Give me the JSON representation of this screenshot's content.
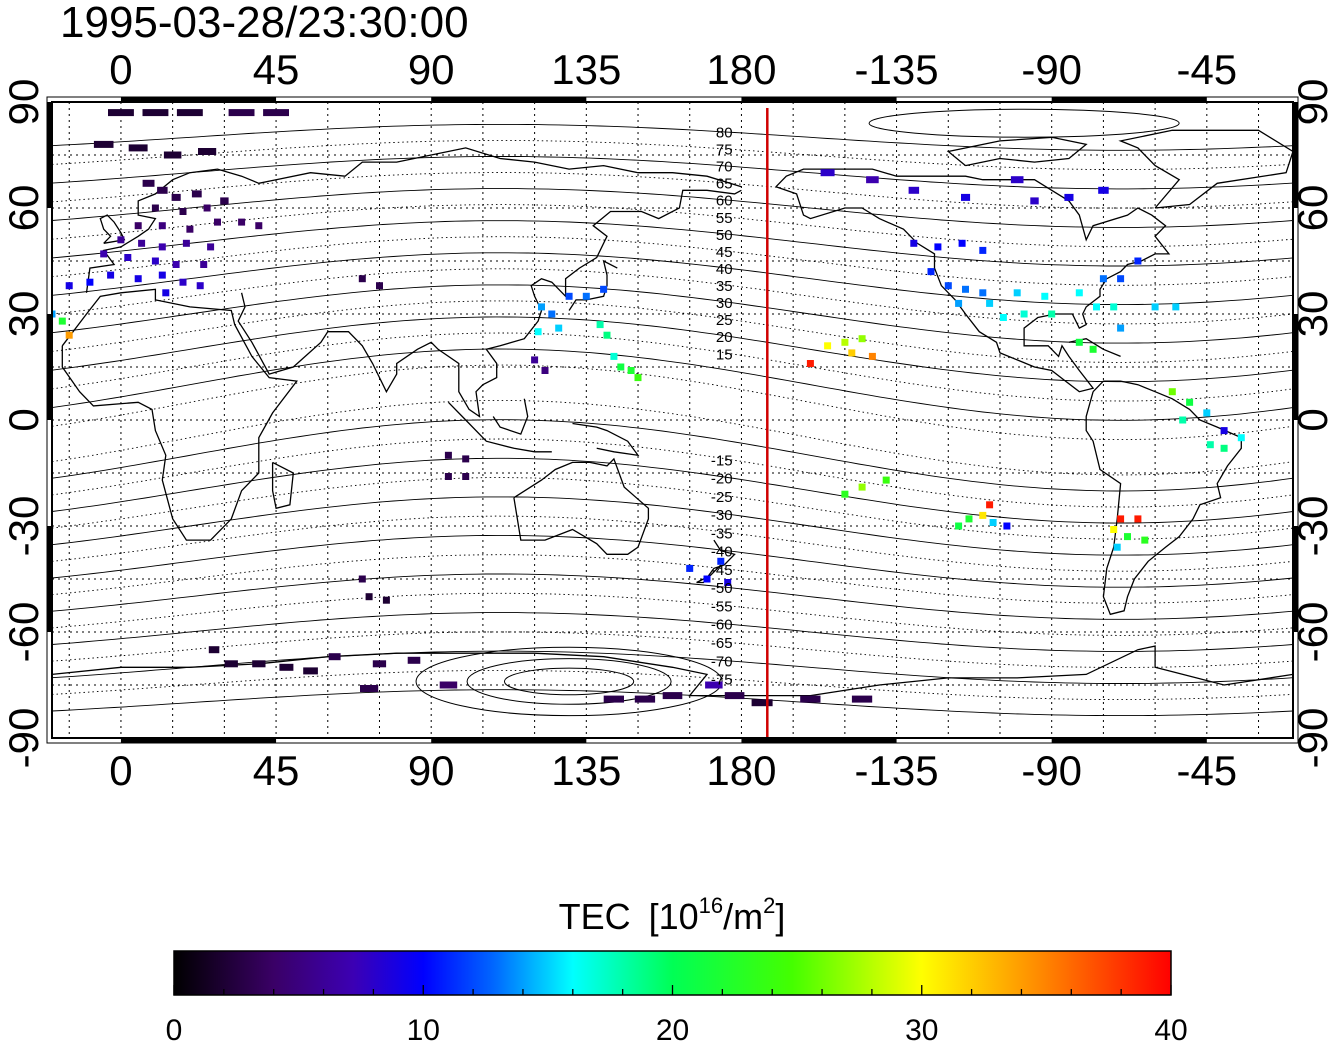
{
  "timestamp": "1995-03-28/23:30:00",
  "x_axis": {
    "longitudes": [
      0,
      45,
      90,
      135,
      180,
      -135,
      -90,
      -45
    ],
    "labels": [
      "0",
      "45",
      "90",
      "135",
      "180",
      "-135",
      "-90",
      "-45"
    ],
    "range": [
      -20,
      340
    ]
  },
  "y_axis": {
    "latitudes": [
      90,
      60,
      30,
      0,
      -30,
      -60,
      -90
    ],
    "labels": [
      "90",
      "60",
      "30",
      "0",
      "-30",
      "-60",
      "-90"
    ],
    "range": [
      -90,
      90
    ]
  },
  "terminator_longitude": 187.5,
  "magnetic_latitude_labels": [
    "80",
    "75",
    "70",
    "65",
    "60",
    "55",
    "50",
    "45",
    "40",
    "35",
    "30",
    "25",
    "20",
    "15",
    "-15",
    "-20",
    "-25",
    "-30",
    "-35",
    "-40",
    "-45",
    "-50",
    "-55",
    "-60",
    "-65",
    "-70",
    "-75"
  ],
  "colorbar": {
    "title": "TEC",
    "unit_prefix": "[10",
    "unit_exp": "16",
    "unit_mid": "/m",
    "unit_exp2": "2",
    "unit_suffix": "]",
    "ticks": [
      "0",
      "10",
      "20",
      "30",
      "40"
    ],
    "range": [
      0,
      40
    ]
  },
  "chart_data": {
    "type": "scatter",
    "title": "1995-03-28/23:30:00",
    "xlabel": "",
    "ylabel": "",
    "xlim": [
      -20,
      340
    ],
    "ylim": [
      -90,
      90
    ],
    "colorbar_label": "TEC [10^16/m^2]",
    "points": [
      {
        "lon": 0,
        "lat": 87,
        "tec": 2
      },
      {
        "lon": 10,
        "lat": 87,
        "tec": 2
      },
      {
        "lon": 20,
        "lat": 87,
        "tec": 2
      },
      {
        "lon": 35,
        "lat": 87,
        "tec": 3
      },
      {
        "lon": 45,
        "lat": 87,
        "tec": 3
      },
      {
        "lon": -5,
        "lat": 78,
        "tec": 2
      },
      {
        "lon": 5,
        "lat": 77,
        "tec": 2
      },
      {
        "lon": 15,
        "lat": 75,
        "tec": 2
      },
      {
        "lon": 25,
        "lat": 76,
        "tec": 2
      },
      {
        "lon": 8,
        "lat": 67,
        "tec": 3
      },
      {
        "lon": 12,
        "lat": 65,
        "tec": 3
      },
      {
        "lon": 16,
        "lat": 63,
        "tec": 3
      },
      {
        "lon": 22,
        "lat": 64,
        "tec": 3
      },
      {
        "lon": 10,
        "lat": 60,
        "tec": 3
      },
      {
        "lon": 18,
        "lat": 59,
        "tec": 3
      },
      {
        "lon": 25,
        "lat": 60,
        "tec": 4
      },
      {
        "lon": 30,
        "lat": 62,
        "tec": 3
      },
      {
        "lon": 5,
        "lat": 55,
        "tec": 4
      },
      {
        "lon": 12,
        "lat": 55,
        "tec": 5
      },
      {
        "lon": 20,
        "lat": 54,
        "tec": 4
      },
      {
        "lon": 28,
        "lat": 56,
        "tec": 4
      },
      {
        "lon": 35,
        "lat": 56,
        "tec": 4
      },
      {
        "lon": 40,
        "lat": 55,
        "tec": 4
      },
      {
        "lon": 0,
        "lat": 51,
        "tec": 6
      },
      {
        "lon": 6,
        "lat": 50,
        "tec": 6
      },
      {
        "lon": 12,
        "lat": 49,
        "tec": 7
      },
      {
        "lon": 19,
        "lat": 50,
        "tec": 6
      },
      {
        "lon": 26,
        "lat": 49,
        "tec": 6
      },
      {
        "lon": -5,
        "lat": 47,
        "tec": 7
      },
      {
        "lon": 2,
        "lat": 46,
        "tec": 8
      },
      {
        "lon": 10,
        "lat": 45,
        "tec": 8
      },
      {
        "lon": 16,
        "lat": 44,
        "tec": 7
      },
      {
        "lon": 24,
        "lat": 44,
        "tec": 6
      },
      {
        "lon": -3,
        "lat": 41,
        "tec": 9
      },
      {
        "lon": 5,
        "lat": 40,
        "tec": 9
      },
      {
        "lon": 12,
        "lat": 41,
        "tec": 9
      },
      {
        "lon": 18,
        "lat": 39,
        "tec": 8
      },
      {
        "lon": 23,
        "lat": 38,
        "tec": 8
      },
      {
        "lon": 13,
        "lat": 36,
        "tec": 9
      },
      {
        "lon": -9,
        "lat": 39,
        "tec": 10
      },
      {
        "lon": -15,
        "lat": 38,
        "tec": 9
      },
      {
        "lon": -20,
        "lat": 30,
        "tec": 14
      },
      {
        "lon": -17,
        "lat": 28,
        "tec": 22
      },
      {
        "lon": -15,
        "lat": 24,
        "tec": 34
      },
      {
        "lon": 70,
        "lat": 40,
        "tec": 3
      },
      {
        "lon": 75,
        "lat": 38,
        "tec": 3
      },
      {
        "lon": 122,
        "lat": 32,
        "tec": 14
      },
      {
        "lon": 125,
        "lat": 30,
        "tec": 13
      },
      {
        "lon": 121,
        "lat": 25,
        "tec": 16
      },
      {
        "lon": 127,
        "lat": 26,
        "tec": 15
      },
      {
        "lon": 120,
        "lat": 17,
        "tec": 6
      },
      {
        "lon": 123,
        "lat": 14,
        "tec": 5
      },
      {
        "lon": 130,
        "lat": 35,
        "tec": 12
      },
      {
        "lon": 135,
        "lat": 35,
        "tec": 13
      },
      {
        "lon": 140,
        "lat": 37,
        "tec": 12
      },
      {
        "lon": 139,
        "lat": 27,
        "tec": 18
      },
      {
        "lon": 141,
        "lat": 24,
        "tec": 19
      },
      {
        "lon": 143,
        "lat": 18,
        "tec": 17
      },
      {
        "lon": 145,
        "lat": 15,
        "tec": 21
      },
      {
        "lon": 148,
        "lat": 14,
        "tec": 22
      },
      {
        "lon": 150,
        "lat": 12,
        "tec": 24
      },
      {
        "lon": 95,
        "lat": -10,
        "tec": 3
      },
      {
        "lon": 100,
        "lat": -11,
        "tec": 3
      },
      {
        "lon": 95,
        "lat": -16,
        "tec": 3
      },
      {
        "lon": 100,
        "lat": -16,
        "tec": 3
      },
      {
        "lon": 70,
        "lat": -45,
        "tec": 3
      },
      {
        "lon": 72,
        "lat": -50,
        "tec": 2
      },
      {
        "lon": 77,
        "lat": -51,
        "tec": 2
      },
      {
        "lon": 165,
        "lat": -42,
        "tec": 11
      },
      {
        "lon": 170,
        "lat": -45,
        "tec": 10
      },
      {
        "lon": 174,
        "lat": -40,
        "tec": 11
      },
      {
        "lon": 176,
        "lat": -46,
        "tec": 9
      },
      {
        "lon": 205,
        "lat": 21,
        "tec": 30
      },
      {
        "lon": 210,
        "lat": 22,
        "tec": 28
      },
      {
        "lon": 215,
        "lat": 23,
        "tec": 27
      },
      {
        "lon": 212,
        "lat": 19,
        "tec": 32
      },
      {
        "lon": 218,
        "lat": 18,
        "tec": 35
      },
      {
        "lon": 200,
        "lat": 16,
        "tec": 39
      },
      {
        "lon": 205,
        "lat": 70,
        "tec": 8
      },
      {
        "lon": 218,
        "lat": 68,
        "tec": 7
      },
      {
        "lon": 230,
        "lat": 65,
        "tec": 8
      },
      {
        "lon": 245,
        "lat": 63,
        "tec": 9
      },
      {
        "lon": 260,
        "lat": 68,
        "tec": 8
      },
      {
        "lon": 265,
        "lat": 62,
        "tec": 8
      },
      {
        "lon": 275,
        "lat": 63,
        "tec": 9
      },
      {
        "lon": 285,
        "lat": 65,
        "tec": 9
      },
      {
        "lon": 230,
        "lat": 50,
        "tec": 9
      },
      {
        "lon": 237,
        "lat": 49,
        "tec": 10
      },
      {
        "lon": 244,
        "lat": 50,
        "tec": 10
      },
      {
        "lon": 250,
        "lat": 48,
        "tec": 11
      },
      {
        "lon": 235,
        "lat": 42,
        "tec": 11
      },
      {
        "lon": 240,
        "lat": 38,
        "tec": 12
      },
      {
        "lon": 245,
        "lat": 37,
        "tec": 13
      },
      {
        "lon": 250,
        "lat": 36,
        "tec": 13
      },
      {
        "lon": 243,
        "lat": 33,
        "tec": 14
      },
      {
        "lon": 252,
        "lat": 33,
        "tec": 15
      },
      {
        "lon": 260,
        "lat": 36,
        "tec": 15
      },
      {
        "lon": 268,
        "lat": 35,
        "tec": 16
      },
      {
        "lon": 256,
        "lat": 29,
        "tec": 16
      },
      {
        "lon": 262,
        "lat": 30,
        "tec": 17
      },
      {
        "lon": 270,
        "lat": 30,
        "tec": 18
      },
      {
        "lon": 278,
        "lat": 36,
        "tec": 16
      },
      {
        "lon": 285,
        "lat": 40,
        "tec": 13
      },
      {
        "lon": 290,
        "lat": 40,
        "tec": 12
      },
      {
        "lon": 295,
        "lat": 45,
        "tec": 11
      },
      {
        "lon": 283,
        "lat": 32,
        "tec": 16
      },
      {
        "lon": 288,
        "lat": 32,
        "tec": 17
      },
      {
        "lon": 300,
        "lat": 32,
        "tec": 15
      },
      {
        "lon": 306,
        "lat": 32,
        "tec": 15
      },
      {
        "lon": 278,
        "lat": 22,
        "tec": 21
      },
      {
        "lon": 282,
        "lat": 20,
        "tec": 22
      },
      {
        "lon": 290,
        "lat": 26,
        "tec": 14
      },
      {
        "lon": 305,
        "lat": 8,
        "tec": 26
      },
      {
        "lon": 310,
        "lat": 5,
        "tec": 21
      },
      {
        "lon": 315,
        "lat": 2,
        "tec": 15
      },
      {
        "lon": 308,
        "lat": 0,
        "tec": 18
      },
      {
        "lon": 320,
        "lat": -3,
        "tec": 9
      },
      {
        "lon": 325,
        "lat": -5,
        "tec": 16
      },
      {
        "lon": 316,
        "lat": -7,
        "tec": 18
      },
      {
        "lon": 320,
        "lat": -8,
        "tec": 19
      },
      {
        "lon": 222,
        "lat": -17,
        "tec": 24
      },
      {
        "lon": 215,
        "lat": -19,
        "tec": 27
      },
      {
        "lon": 210,
        "lat": -21,
        "tec": 23
      },
      {
        "lon": 252,
        "lat": -24,
        "tec": 39
      },
      {
        "lon": 250,
        "lat": -27,
        "tec": 31
      },
      {
        "lon": 246,
        "lat": -28,
        "tec": 22
      },
      {
        "lon": 253,
        "lat": -29,
        "tec": 15
      },
      {
        "lon": 257,
        "lat": -30,
        "tec": 10
      },
      {
        "lon": 243,
        "lat": -30,
        "tec": 21
      },
      {
        "lon": 290,
        "lat": -28,
        "tec": 39
      },
      {
        "lon": 295,
        "lat": -28,
        "tec": 39
      },
      {
        "lon": 288,
        "lat": -31,
        "tec": 30
      },
      {
        "lon": 292,
        "lat": -33,
        "tec": 22
      },
      {
        "lon": 297,
        "lat": -34,
        "tec": 23
      },
      {
        "lon": 289,
        "lat": -36,
        "tec": 15
      },
      {
        "lon": 27,
        "lat": -65,
        "tec": 2
      },
      {
        "lon": 32,
        "lat": -69,
        "tec": 2
      },
      {
        "lon": 40,
        "lat": -69,
        "tec": 2
      },
      {
        "lon": 48,
        "lat": -70,
        "tec": 2
      },
      {
        "lon": 55,
        "lat": -71,
        "tec": 2
      },
      {
        "lon": 62,
        "lat": -67,
        "tec": 3
      },
      {
        "lon": 75,
        "lat": -69,
        "tec": 3
      },
      {
        "lon": 85,
        "lat": -68,
        "tec": 3
      },
      {
        "lon": 72,
        "lat": -76,
        "tec": 3
      },
      {
        "lon": 95,
        "lat": -75,
        "tec": 4
      },
      {
        "lon": 143,
        "lat": -79,
        "tec": 3
      },
      {
        "lon": 152,
        "lat": -79,
        "tec": 3
      },
      {
        "lon": 160,
        "lat": -78,
        "tec": 3
      },
      {
        "lon": 172,
        "lat": -75,
        "tec": 7
      },
      {
        "lon": 178,
        "lat": -78,
        "tec": 3
      },
      {
        "lon": 186,
        "lat": -80,
        "tec": 2
      },
      {
        "lon": 200,
        "lat": -79,
        "tec": 3
      },
      {
        "lon": 215,
        "lat": -79,
        "tec": 3
      }
    ]
  }
}
